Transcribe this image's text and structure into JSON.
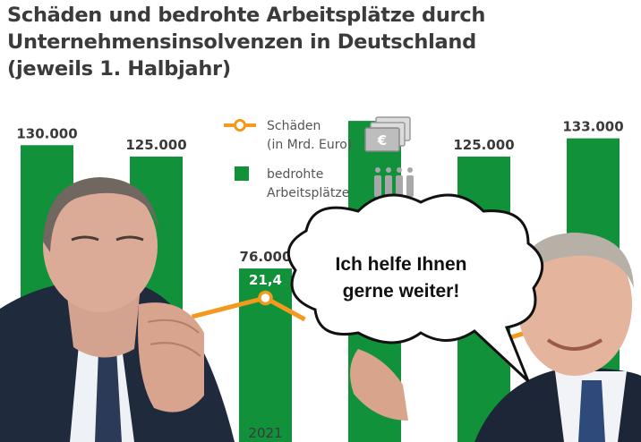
{
  "chart_data": {
    "type": "bar",
    "title_lines": [
      "Schäden und bedrohte Arbeitsplätze durch",
      "Unternehmensinsolvenzen in Deutschland",
      "(jeweils 1. Halbjahr)"
    ],
    "categories": [
      "",
      "",
      "2021",
      "",
      "",
      ""
    ],
    "bar_labels": [
      "130.000",
      "125.000",
      "76.000",
      "",
      "125.000",
      "133.000"
    ],
    "series": [
      {
        "name": "bedrohte Arbeitsplätze",
        "values": [
          130000,
          125000,
          76000,
          null,
          125000,
          133000
        ]
      },
      {
        "name": "Schäden (in Mrd. Euro)",
        "values": [
          null,
          null,
          21.4,
          null,
          null,
          null
        ]
      }
    ],
    "line_labels": [
      "",
      "",
      "21,4",
      "",
      "",
      ""
    ],
    "legend": {
      "position": "top-center",
      "damage_lines": [
        "Schäden",
        "(in Mrd. Euro)"
      ],
      "jobs_lines": [
        "bedrohte",
        "Arbeitsplätze"
      ]
    },
    "ylim": [
      0,
      145000
    ],
    "colors": {
      "bars": "#11913a",
      "line": "#f39a1e",
      "title": "#3b3b3b"
    }
  },
  "overlay": {
    "speech_bubble": {
      "lines": [
        "Ich helfe Ihnen",
        "gerne weiter!"
      ]
    },
    "persons": [
      "person-left",
      "person-right"
    ]
  }
}
